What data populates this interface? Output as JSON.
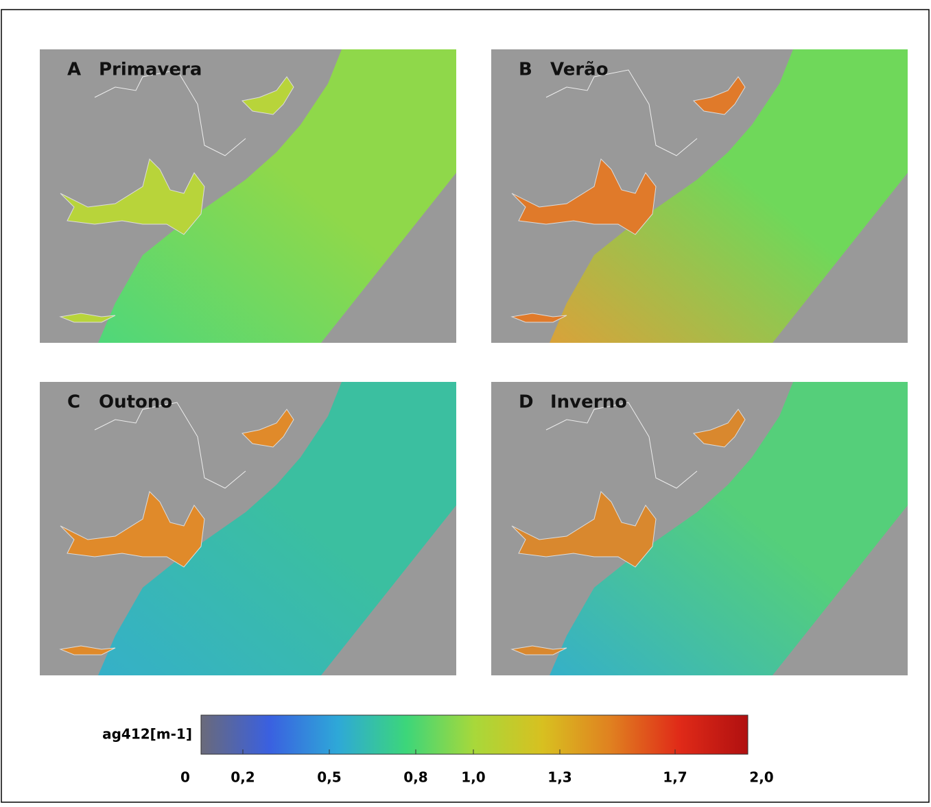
{
  "panels": [
    {
      "letter": "A",
      "season": "Primavera",
      "color": "#8fd84a",
      "color2": "#4fd77a",
      "estuary": "#b8d43a"
    },
    {
      "letter": "B",
      "season": "Verão",
      "color": "#6fd85a",
      "color2": "#d9a23a",
      "estuary": "#e07a2a"
    },
    {
      "letter": "C",
      "season": "Outono",
      "color": "#3bbfa0",
      "color2": "#35b0c8",
      "estuary": "#e08a2a"
    },
    {
      "letter": "D",
      "season": "Inverno",
      "color": "#55cf7a",
      "color2": "#35b0c8",
      "estuary": "#d9882e"
    }
  ],
  "colorbar": {
    "label": "ag412[m-1]",
    "lim": [
      0,
      2
    ],
    "ticks": [
      0,
      {
        "value": 0.2,
        "label": "0,2"
      },
      {
        "value": 0.5,
        "label": "0,5"
      },
      {
        "value": 0.8,
        "label": "0,8"
      },
      {
        "value": 1.0,
        "label": "1,0"
      },
      {
        "value": 1.3,
        "label": "1,3"
      },
      {
        "value": 1.7,
        "label": "1,7"
      },
      {
        "value": 2.0,
        "label": "2,0"
      }
    ],
    "colors": [
      "#6a6a7a",
      "#3a60e0",
      "#2ea8d8",
      "#3cd67a",
      "#a8d83a",
      "#d8c020",
      "#e08020",
      "#e02a18",
      "#b01010"
    ]
  }
}
